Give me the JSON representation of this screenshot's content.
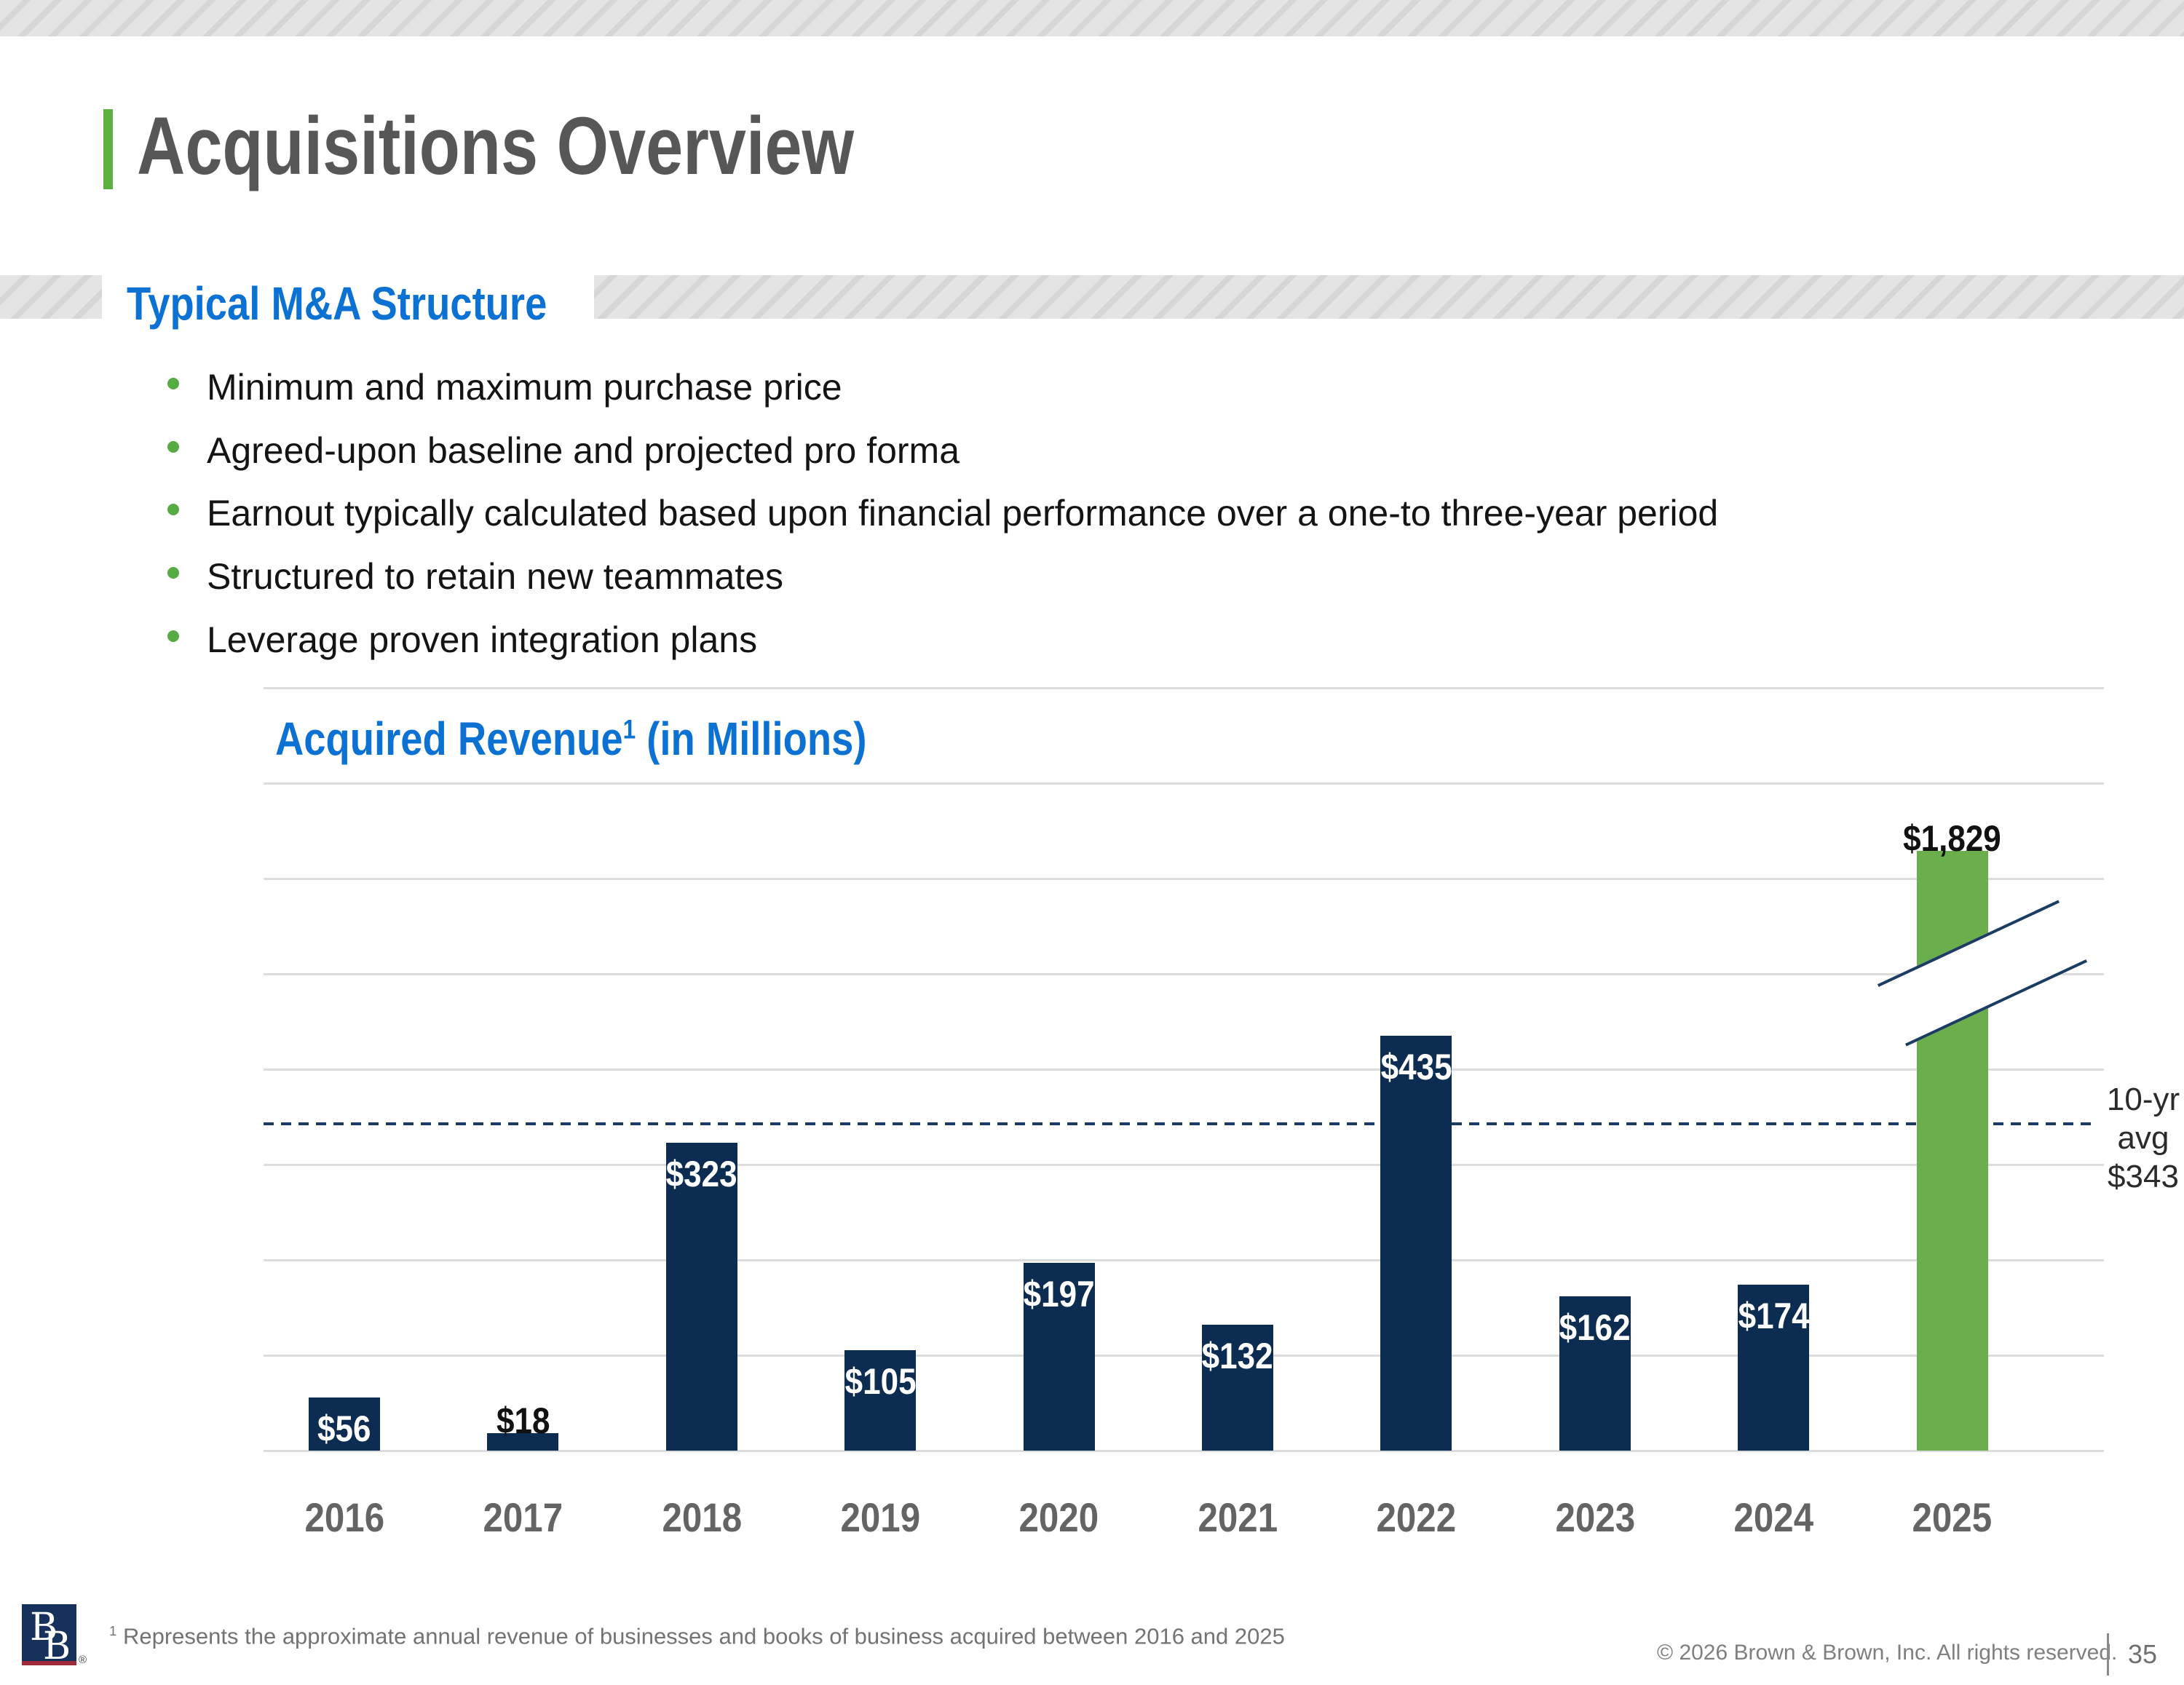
{
  "slide": {
    "title": "Acquisitions Overview",
    "section_header": "Typical M&A Structure",
    "bullets": [
      "Minimum and maximum purchase price",
      "Agreed-upon baseline and projected pro forma",
      "Earnout typically calculated based upon financial performance over a one-to three-year period",
      "Structured to retain new teammates",
      "Leverage proven integration plans"
    ],
    "footnote_marker": "1",
    "footnote": "Represents the approximate annual revenue of businesses and books of business acquired between 2016 and 2025",
    "copyright": "© 2026 Brown & Brown, Inc. All rights reserved.",
    "page_number": "35",
    "logo_letters": [
      "B",
      "B"
    ],
    "logo_reg": "®",
    "colors": {
      "accent_green": "#5cb23e",
      "heading_blue": "#0b72d4",
      "title_gray": "#575757"
    }
  },
  "chart_data": {
    "type": "bar",
    "title": "Acquired Revenue",
    "title_sup": "1",
    "title_rest": " (in Millions)",
    "categories": [
      "2016",
      "2017",
      "2018",
      "2019",
      "2020",
      "2021",
      "2022",
      "2023",
      "2024",
      "2025"
    ],
    "values": [
      56,
      18,
      323,
      105,
      197,
      132,
      435,
      162,
      174,
      1829
    ],
    "labels": [
      "$56",
      "$18",
      "$323",
      "$105",
      "$197",
      "$132",
      "$435",
      "$162",
      "$174",
      "$1,829"
    ],
    "label_position": [
      "inside",
      "above",
      "inside",
      "inside",
      "inside",
      "inside",
      "inside",
      "inside",
      "inside",
      "above"
    ],
    "bar_color": "#0d2c51",
    "highlight_bar_color": "#6aaf4b",
    "highlight_index": 9,
    "break_bar_index": 9,
    "ylim": [
      0,
      800
    ],
    "grid_step": 100,
    "grid": "on",
    "xlabel": "",
    "ylabel": "",
    "average_line": {
      "value": 343,
      "style": "dashed",
      "color": "#1c3c63",
      "label_lines": [
        "10-yr",
        "avg",
        "$343"
      ]
    }
  }
}
